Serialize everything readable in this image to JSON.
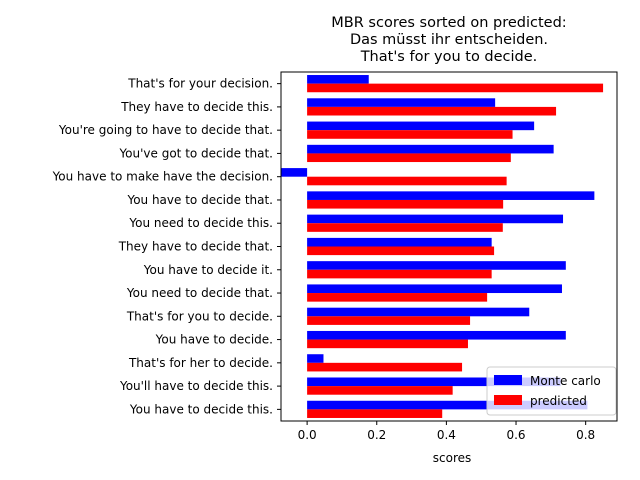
{
  "chart_data": {
    "type": "bar",
    "orientation": "horizontal",
    "title_lines": [
      "MBR scores sorted on predicted:",
      "Das müsst ihr entscheiden.",
      "That's for you to decide."
    ],
    "xlabel": "scores",
    "ylabel": "",
    "xlim": [
      -0.075,
      0.89
    ],
    "xticks": [
      0.0,
      0.2,
      0.4,
      0.6,
      0.8
    ],
    "xtick_labels": [
      "0.0",
      "0.2",
      "0.4",
      "0.6",
      "0.8"
    ],
    "grid": false,
    "legend_position": "lower-right",
    "categories": [
      "That's for your decision.",
      "They have to decide this.",
      "You're going to have to decide that.",
      "You've got to decide that.",
      "You have to make have the decision.",
      "You have to decide that.",
      "You need to decide this.",
      "They have to decide that.",
      "You have to decide it.",
      "You need to decide that.",
      "That's for you to decide.",
      "You have to decide.",
      "That's for her to decide.",
      "You'll have to decide this.",
      "You have to decide this."
    ],
    "series": [
      {
        "name": "Monte carlo",
        "color": "#0000ff",
        "values": [
          0.177,
          0.54,
          0.652,
          0.708,
          -0.075,
          0.825,
          0.735,
          0.53,
          0.743,
          0.732,
          0.638,
          0.743,
          0.047,
          0.728,
          0.805
        ]
      },
      {
        "name": "predicted",
        "color": "#ff0000",
        "values": [
          0.85,
          0.715,
          0.59,
          0.585,
          0.573,
          0.563,
          0.562,
          0.537,
          0.53,
          0.517,
          0.468,
          0.462,
          0.445,
          0.418,
          0.388
        ]
      }
    ]
  }
}
